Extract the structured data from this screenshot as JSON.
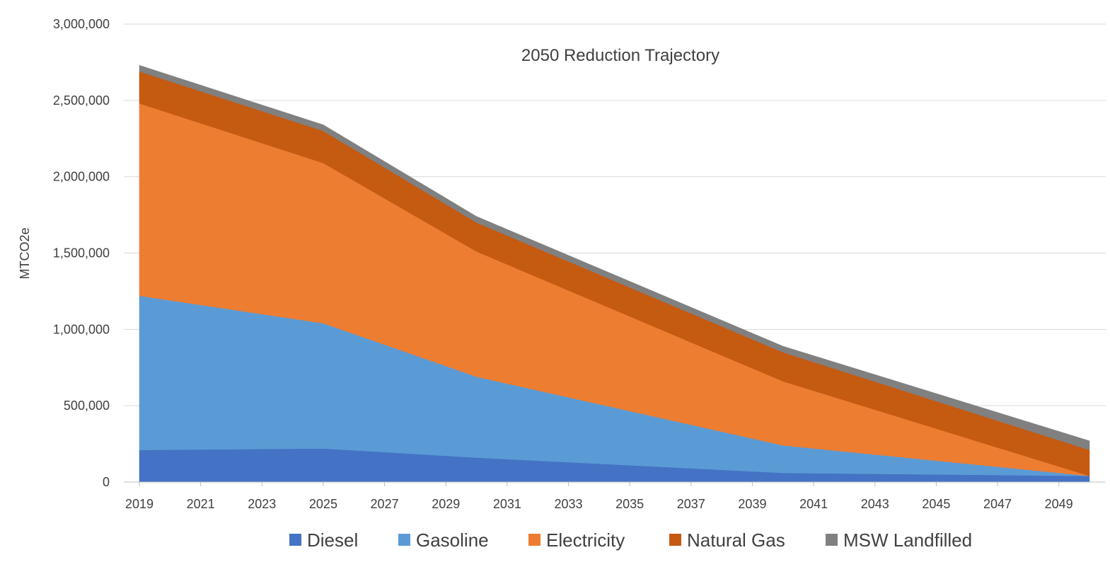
{
  "chart_data": {
    "type": "area",
    "stacked": true,
    "title": "2050 Reduction Trajectory",
    "xlabel": "",
    "ylabel": "MTCO2e",
    "xlim": [
      2019,
      2050
    ],
    "ylim": [
      0,
      3000000
    ],
    "y_ticks": [
      "0",
      "500,000",
      "1,000,000",
      "1,500,000",
      "2,000,000",
      "2,500,000",
      "3,000,000"
    ],
    "y_tick_values": [
      0,
      500000,
      1000000,
      1500000,
      2000000,
      2500000,
      3000000
    ],
    "x_tick_labels": [
      "2019",
      "2021",
      "2023",
      "2025",
      "2027",
      "2029",
      "2031",
      "2033",
      "2035",
      "2037",
      "2039",
      "2041",
      "2043",
      "2045",
      "2047",
      "2049"
    ],
    "grid": true,
    "legend_position": "bottom",
    "x": [
      2019,
      2025,
      2030,
      2040,
      2050
    ],
    "series": [
      {
        "name": "Diesel",
        "color": "#4472c4",
        "values": [
          210000,
          220000,
          160000,
          60000,
          40000
        ]
      },
      {
        "name": "Gasoline",
        "color": "#5b9bd5",
        "values": [
          1010000,
          820000,
          530000,
          180000,
          0
        ]
      },
      {
        "name": "Electricity",
        "color": "#ed7d31",
        "values": [
          1260000,
          1050000,
          820000,
          420000,
          0
        ]
      },
      {
        "name": "Natural Gas",
        "color": "#c55a11",
        "values": [
          210000,
          210000,
          190000,
          190000,
          170000
        ]
      },
      {
        "name": "MSW Landfilled",
        "color": "#808080",
        "values": [
          40000,
          40000,
          40000,
          40000,
          60000
        ]
      }
    ]
  }
}
